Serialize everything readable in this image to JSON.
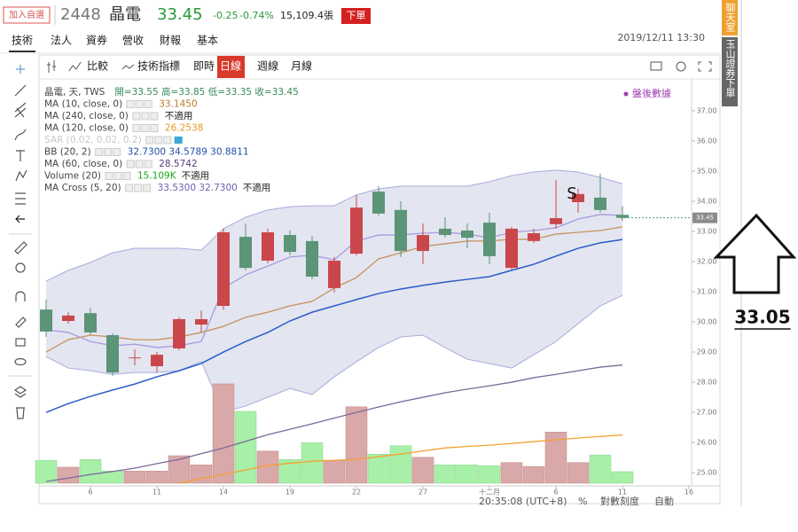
{
  "header": {
    "watch": "加入自選",
    "code": "2448",
    "name": "晶電",
    "price": "33.45",
    "change": "-0.25",
    "change_pct": "-0.74%",
    "volume": "15,109.4張",
    "order": "下單"
  },
  "tabs": [
    "技術",
    "法人",
    "資券",
    "營收",
    "財報",
    "基本"
  ],
  "datetime": "2019/12/11 13:30",
  "toolbar": {
    "compare": "比較",
    "indicators": "技術指標",
    "intervals": [
      "即時",
      "日線",
      "週線",
      "月線"
    ],
    "active": 1
  },
  "side": {
    "chat": "聊天室",
    "broker": "玉山證券下單"
  },
  "footer": {
    "time": "20:35:08 (UTC+8)",
    "percent": "%",
    "log": "對數刻度",
    "auto": "自動"
  },
  "chart_data": {
    "type": "candlestick",
    "categories": [
      null,
      null,
      "6",
      null,
      null,
      "11",
      null,
      null,
      "14",
      null,
      null,
      "19",
      null,
      null,
      "22",
      null,
      null,
      "27",
      null,
      null,
      "十二月",
      null,
      null,
      "6",
      null,
      null,
      "11",
      null,
      null,
      "16"
    ],
    "open": [
      30.41,
      30.03,
      30.29,
      29.56,
      28.82,
      28.53,
      29.12,
      29.91,
      30.53,
      32.82,
      32.03,
      32.88,
      32.68,
      31.12,
      32.26,
      34.32,
      33.71,
      32.35,
      33.09,
      33.03,
      33.29,
      31.79,
      32.68,
      33.24,
      33.97,
      34.12,
      33.55,
      null,
      null,
      null
    ],
    "high": [
      30.74,
      30.32,
      30.47,
      29.62,
      29.09,
      29.0,
      30.15,
      30.38,
      33.09,
      33.26,
      33.09,
      33.03,
      32.85,
      32.15,
      34.21,
      34.5,
      34.0,
      33.26,
      33.47,
      33.26,
      33.62,
      33.15,
      33.09,
      34.71,
      34.41,
      34.91,
      33.85,
      null,
      null,
      null
    ],
    "low": [
      29.5,
      29.94,
      29.56,
      28.21,
      28.56,
      28.32,
      29.06,
      29.65,
      30.4,
      31.71,
      31.94,
      32.21,
      31.41,
      30.97,
      32.21,
      33.53,
      32.15,
      31.91,
      32.79,
      32.44,
      31.91,
      31.74,
      32.62,
      33.09,
      33.62,
      33.62,
      33.35,
      null,
      null,
      null
    ],
    "close": [
      29.68,
      30.21,
      29.65,
      28.32,
      28.82,
      28.91,
      30.09,
      30.09,
      32.97,
      31.79,
      32.97,
      32.32,
      31.5,
      32.03,
      33.79,
      33.59,
      32.35,
      32.88,
      32.88,
      32.79,
      32.18,
      33.09,
      32.94,
      33.44,
      34.24,
      33.71,
      33.45,
      null,
      null,
      null
    ],
    "up_color": "#c9474a",
    "down_color": "#5b9477",
    "volume": {
      "values": [
        30,
        21,
        31,
        16,
        16,
        16,
        36,
        24,
        130,
        94,
        42,
        31,
        53,
        30,
        100,
        38,
        49,
        34,
        24,
        24,
        23,
        27,
        22,
        67,
        27,
        37,
        15.109,
        null,
        null,
        null
      ],
      "up_color": "#d9a8a8",
      "down_color": "#a8f0a8"
    },
    "ylim": [
      24.65,
      37.88
    ],
    "yticks": [
      {
        "value": 25,
        "label": "25.00"
      },
      {
        "value": 26,
        "label": "26.00"
      },
      {
        "value": 27,
        "label": "27.00"
      },
      {
        "value": 28,
        "label": "28.00"
      },
      {
        "value": 29,
        "label": "29.00"
      },
      {
        "value": 30,
        "label": "30.00"
      },
      {
        "value": 31,
        "label": "31.00"
      },
      {
        "value": 32,
        "label": "32.00"
      },
      {
        "value": 33,
        "label": "33.00"
      },
      {
        "value": 34,
        "label": "34.00"
      },
      {
        "value": 35,
        "label": "35.00"
      },
      {
        "value": 36,
        "label": "36.00"
      },
      {
        "value": 37,
        "label": "37.00"
      }
    ],
    "band_color": "#e3e5f0",
    "annotations": {
      "signal": "S",
      "after_hours": "盤後數據",
      "target": "33.05"
    },
    "legend": [
      {
        "label": "晶電, 天, TWS",
        "readings": [
          {
            "text": "開=33.55  高=33.85  低=33.35  收=33.45",
            "color": "#3a8a5a"
          }
        ]
      },
      {
        "label": "MA (10, close, 0)",
        "readings": [
          {
            "text": "33.1450",
            "color": "#c07a22"
          }
        ],
        "color": "#c8915a",
        "values": [
          29.0,
          29.41,
          29.56,
          29.5,
          29.41,
          29.41,
          29.5,
          29.65,
          29.85,
          30.15,
          30.32,
          30.53,
          30.68,
          31.12,
          31.47,
          32.09,
          32.29,
          32.5,
          32.59,
          32.68,
          32.68,
          32.74,
          32.74,
          32.91,
          32.97,
          33.03,
          33.15,
          null,
          null,
          null
        ]
      },
      {
        "label": "MA (240, close, 0)",
        "readings": [
          {
            "text": "不適用",
            "color": "#222222"
          }
        ]
      },
      {
        "label": "MA (120, close, 0)",
        "readings": [
          {
            "text": "26.2538",
            "color": "#e09a20"
          }
        ],
        "color": "#f5a030",
        "values": [
          null,
          null,
          null,
          null,
          null,
          null,
          24.65,
          24.8,
          24.94,
          25.09,
          25.24,
          25.31,
          25.38,
          25.41,
          25.44,
          25.53,
          25.62,
          25.72,
          25.82,
          25.87,
          25.91,
          25.97,
          26.03,
          26.09,
          26.15,
          26.2,
          26.25,
          null,
          null,
          null
        ]
      },
      {
        "label": "SAR (0.02, 0.02, 0.2)",
        "readings": [],
        "faded": true
      },
      {
        "label": "BB (20, 2)",
        "readings": [
          {
            "text": "32.7300 34.5789 30.8811",
            "color": "#1f4ea8"
          }
        ],
        "color": "#2a5cc8",
        "band_line": "#a8aadc",
        "middle": [
          27.0,
          27.29,
          27.53,
          27.74,
          27.94,
          28.18,
          28.38,
          28.62,
          29.0,
          29.35,
          29.65,
          30.03,
          30.32,
          30.53,
          30.74,
          30.94,
          31.09,
          31.21,
          31.32,
          31.41,
          31.5,
          31.71,
          31.91,
          32.18,
          32.44,
          32.62,
          32.73,
          null,
          null,
          null
        ],
        "upper": [
          31.35,
          31.71,
          31.97,
          32.29,
          32.44,
          32.44,
          32.44,
          32.38,
          33.09,
          33.47,
          33.71,
          33.82,
          33.85,
          33.85,
          34.21,
          34.41,
          34.5,
          34.5,
          34.5,
          34.5,
          34.65,
          34.85,
          34.97,
          35.03,
          34.97,
          34.79,
          34.58,
          null,
          null,
          null
        ],
        "lower": [
          28.85,
          28.47,
          28.38,
          28.26,
          28.32,
          28.32,
          28.38,
          28.68,
          27.0,
          27.21,
          27.5,
          27.79,
          27.59,
          28.18,
          28.68,
          29.15,
          29.5,
          29.56,
          29.15,
          28.76,
          28.62,
          28.47,
          28.91,
          29.35,
          29.94,
          30.53,
          30.88,
          null,
          null,
          null
        ]
      },
      {
        "label": "MA (60, close, 0)",
        "readings": [
          {
            "text": "28.5742",
            "color": "#5a3e7a"
          }
        ],
        "color": "#7a6a9a",
        "values": [
          24.71,
          24.82,
          24.94,
          25.04,
          25.15,
          25.3,
          25.44,
          25.63,
          25.82,
          26.04,
          26.26,
          26.44,
          26.62,
          26.81,
          27.0,
          27.18,
          27.35,
          27.5,
          27.65,
          27.77,
          27.88,
          28.0,
          28.15,
          28.26,
          28.38,
          28.5,
          28.57,
          null,
          null,
          null
        ]
      },
      {
        "label": "Volume (20)",
        "readings": [
          {
            "text": "15.109K",
            "color": "#1aaa1a"
          },
          {
            "text": "不適用",
            "color": "#222222"
          }
        ]
      },
      {
        "label": "MA Cross (5, 20)",
        "readings": [
          {
            "text": "33.5300 32.7300",
            "color": "#6a60b0"
          },
          {
            "text": "不適用",
            "color": "#222222"
          }
        ],
        "color": "#a89ae0",
        "values": [
          29.74,
          29.65,
          29.35,
          29.21,
          29.26,
          29.15,
          29.21,
          29.35,
          31.12,
          31.56,
          31.85,
          32.15,
          32.21,
          32.06,
          32.68,
          32.88,
          32.88,
          32.94,
          32.97,
          32.91,
          32.79,
          32.97,
          33.03,
          33.12,
          33.41,
          33.56,
          33.53,
          null,
          null,
          null
        ]
      }
    ]
  }
}
